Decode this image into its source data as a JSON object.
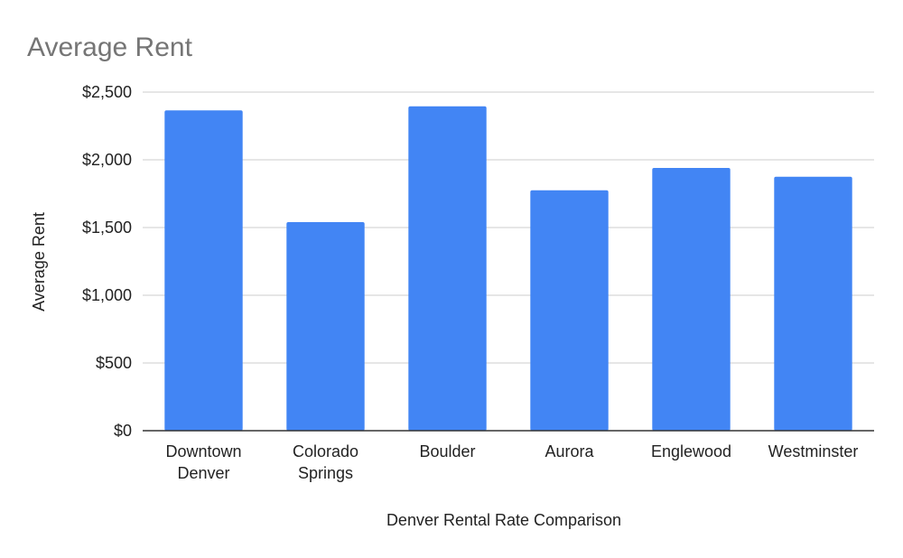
{
  "chart_data": {
    "type": "bar",
    "title": "Average Rent",
    "xlabel": "Denver Rental Rate Comparison",
    "ylabel": "Average Rent",
    "categories": [
      [
        "Downtown",
        "Denver"
      ],
      [
        "Colorado",
        "Springs"
      ],
      [
        "Boulder"
      ],
      [
        "Aurora"
      ],
      [
        "Englewood"
      ],
      [
        "Westminster"
      ]
    ],
    "values": [
      2365,
      1540,
      2395,
      1775,
      1940,
      1875
    ],
    "ylim": [
      0,
      2500
    ],
    "yticks": [
      0,
      500,
      1000,
      1500,
      2000,
      2500
    ],
    "ytick_labels": [
      "$0",
      "$500",
      "$1,000",
      "$1,500",
      "$2,000",
      "$2,500"
    ],
    "grid": true,
    "legend": "none",
    "bar_color": "#4285f4"
  }
}
